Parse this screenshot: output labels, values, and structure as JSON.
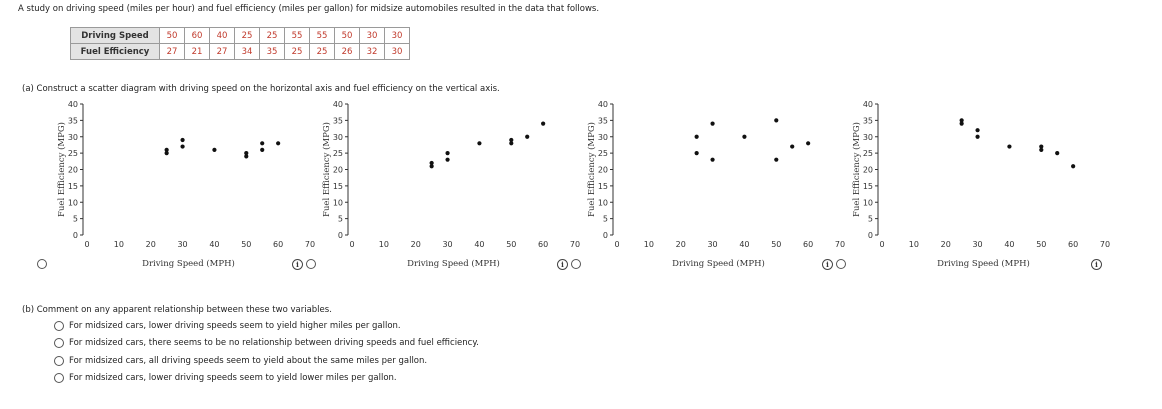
{
  "intro_text": "A study on driving speed (miles per hour) and fuel efficiency (miles per gallon) for midsize automobiles resulted in the data that follows.",
  "table": {
    "row1_label": "Driving Speed",
    "row1_values": [
      "50",
      "60",
      "40",
      "25",
      "25",
      "55",
      "55",
      "50",
      "30",
      "30"
    ],
    "row2_label": "Fuel Efficiency",
    "row2_values": [
      "27",
      "21",
      "27",
      "34",
      "35",
      "25",
      "25",
      "26",
      "32",
      "30"
    ]
  },
  "part_a_text": "(a)  Construct a scatter diagram with driving speed on the horizontal axis and fuel efficiency on the vertical axis.",
  "part_b_text": "(b)  Comment on any apparent relationship between these two variables.",
  "part_b_options": [
    "For midsized cars, lower driving speeds seem to yield higher miles per gallon.",
    "For midsized cars, there seems to be no relationship between driving speeds and fuel efficiency.",
    "For midsized cars, all driving speeds seem to yield about the same miles per gallon.",
    "For midsized cars, lower driving speeds seem to yield lower miles per gallon."
  ],
  "chart_data": [
    {
      "type": "scatter",
      "xlabel": "Driving Speed (MPH)",
      "ylabel": "Fuel Efficiency (MPG)",
      "xlim": [
        0,
        70
      ],
      "ylim": [
        0,
        40
      ],
      "xticks": [
        0,
        10,
        20,
        30,
        40,
        50,
        60,
        70
      ],
      "yticks": [
        0,
        5,
        10,
        15,
        20,
        25,
        30,
        35,
        40
      ],
      "points": [
        [
          25,
          26
        ],
        [
          25,
          25
        ],
        [
          30,
          29
        ],
        [
          30,
          27
        ],
        [
          40,
          26
        ],
        [
          50,
          25
        ],
        [
          50,
          24
        ],
        [
          55,
          28
        ],
        [
          55,
          26
        ],
        [
          60,
          28
        ]
      ]
    },
    {
      "type": "scatter",
      "xlabel": "Driving Speed (MPH)",
      "ylabel": "Fuel Efficiency (MPG)",
      "xlim": [
        0,
        70
      ],
      "ylim": [
        0,
        40
      ],
      "xticks": [
        0,
        10,
        20,
        30,
        40,
        50,
        60,
        70
      ],
      "yticks": [
        0,
        5,
        10,
        15,
        20,
        25,
        30,
        35,
        40
      ],
      "points": [
        [
          25,
          21
        ],
        [
          25,
          22
        ],
        [
          30,
          23
        ],
        [
          30,
          25
        ],
        [
          40,
          28
        ],
        [
          50,
          29
        ],
        [
          50,
          28
        ],
        [
          55,
          30
        ],
        [
          60,
          34
        ]
      ]
    },
    {
      "type": "scatter",
      "xlabel": "Driving Speed (MPH)",
      "ylabel": "Fuel Efficiency (MPG)",
      "xlim": [
        0,
        70
      ],
      "ylim": [
        0,
        40
      ],
      "xticks": [
        0,
        10,
        20,
        30,
        40,
        50,
        60,
        70
      ],
      "yticks": [
        0,
        5,
        10,
        15,
        20,
        25,
        30,
        35,
        40
      ],
      "points": [
        [
          25,
          30
        ],
        [
          25,
          25
        ],
        [
          30,
          34
        ],
        [
          30,
          23
        ],
        [
          40,
          30
        ],
        [
          50,
          35
        ],
        [
          50,
          23
        ],
        [
          55,
          27
        ],
        [
          60,
          28
        ]
      ]
    },
    {
      "type": "scatter",
      "xlabel": "Driving Speed (MPH)",
      "ylabel": "Fuel Efficiency (MPG)",
      "xlim": [
        0,
        70
      ],
      "ylim": [
        0,
        40
      ],
      "xticks": [
        0,
        10,
        20,
        30,
        40,
        50,
        60,
        70
      ],
      "yticks": [
        0,
        5,
        10,
        15,
        20,
        25,
        30,
        35,
        40
      ],
      "points": [
        [
          25,
          35
        ],
        [
          25,
          34
        ],
        [
          30,
          32
        ],
        [
          30,
          30
        ],
        [
          40,
          27
        ],
        [
          50,
          27
        ],
        [
          50,
          26
        ],
        [
          55,
          25
        ],
        [
          60,
          21
        ]
      ]
    }
  ]
}
